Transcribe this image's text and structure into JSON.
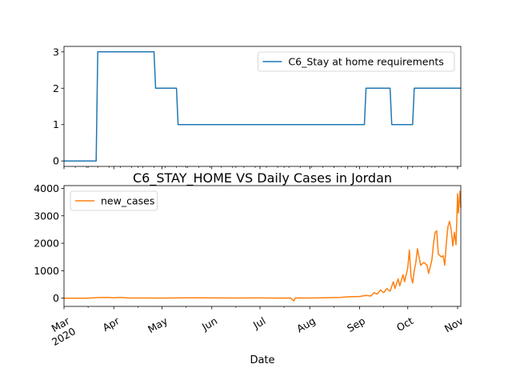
{
  "chart_data": [
    {
      "type": "line",
      "title": "",
      "xlabel": "",
      "ylabel": "",
      "ylim": [
        -0.15,
        3.15
      ],
      "yticks": [
        0,
        1,
        2,
        3
      ],
      "legend": "upper right",
      "series": [
        {
          "name": "C6_Stay at home requirements",
          "color": "#1f77b4",
          "points": [
            [
              "2020-03-01",
              0
            ],
            [
              "2020-03-21",
              0
            ],
            [
              "2020-03-22",
              3
            ],
            [
              "2020-04-26",
              3
            ],
            [
              "2020-04-27",
              2
            ],
            [
              "2020-05-10",
              2
            ],
            [
              "2020-05-11",
              1
            ],
            [
              "2020-09-04",
              1
            ],
            [
              "2020-09-05",
              2
            ],
            [
              "2020-09-20",
              2
            ],
            [
              "2020-09-21",
              1
            ],
            [
              "2020-10-04",
              1
            ],
            [
              "2020-10-05",
              2
            ],
            [
              "2020-11-03",
              2
            ]
          ]
        }
      ]
    },
    {
      "type": "line",
      "title": "C6_STAY_HOME VS Daily Cases in Jordan",
      "xlabel": "Date",
      "ylabel": "",
      "ylim": [
        -300,
        4100
      ],
      "yticks": [
        0,
        1000,
        2000,
        3000,
        4000
      ],
      "legend": "upper left",
      "series": [
        {
          "name": "new_cases",
          "color": "#ff7f0e",
          "points": [
            [
              "2020-03-01",
              0
            ],
            [
              "2020-03-15",
              0
            ],
            [
              "2020-03-22",
              20
            ],
            [
              "2020-03-28",
              30
            ],
            [
              "2020-04-01",
              15
            ],
            [
              "2020-04-05",
              25
            ],
            [
              "2020-04-10",
              5
            ],
            [
              "2020-04-20",
              5
            ],
            [
              "2020-05-01",
              3
            ],
            [
              "2020-05-10",
              10
            ],
            [
              "2020-05-20",
              15
            ],
            [
              "2020-06-01",
              8
            ],
            [
              "2020-06-15",
              5
            ],
            [
              "2020-07-01",
              10
            ],
            [
              "2020-07-10",
              3
            ],
            [
              "2020-07-20",
              5
            ],
            [
              "2020-07-22",
              -100
            ],
            [
              "2020-07-23",
              10
            ],
            [
              "2020-08-01",
              5
            ],
            [
              "2020-08-10",
              15
            ],
            [
              "2020-08-20",
              30
            ],
            [
              "2020-08-25",
              50
            ],
            [
              "2020-09-01",
              60
            ],
            [
              "2020-09-05",
              100
            ],
            [
              "2020-09-08",
              80
            ],
            [
              "2020-09-10",
              200
            ],
            [
              "2020-09-12",
              150
            ],
            [
              "2020-09-14",
              300
            ],
            [
              "2020-09-16",
              200
            ],
            [
              "2020-09-18",
              350
            ],
            [
              "2020-09-20",
              250
            ],
            [
              "2020-09-22",
              600
            ],
            [
              "2020-09-23",
              350
            ],
            [
              "2020-09-25",
              700
            ],
            [
              "2020-09-26",
              450
            ],
            [
              "2020-09-28",
              850
            ],
            [
              "2020-09-29",
              600
            ],
            [
              "2020-10-01",
              1100
            ],
            [
              "2020-10-02",
              1750
            ],
            [
              "2020-10-03",
              800
            ],
            [
              "2020-10-04",
              550
            ],
            [
              "2020-10-05",
              1000
            ],
            [
              "2020-10-06",
              1300
            ],
            [
              "2020-10-07",
              1800
            ],
            [
              "2020-10-08",
              1500
            ],
            [
              "2020-10-09",
              1200
            ],
            [
              "2020-10-11",
              1300
            ],
            [
              "2020-10-13",
              1200
            ],
            [
              "2020-10-14",
              900
            ],
            [
              "2020-10-16",
              1400
            ],
            [
              "2020-10-17",
              2000
            ],
            [
              "2020-10-18",
              2400
            ],
            [
              "2020-10-19",
              2450
            ],
            [
              "2020-10-20",
              1600
            ],
            [
              "2020-10-22",
              1500
            ],
            [
              "2020-10-23",
              1550
            ],
            [
              "2020-10-24",
              1200
            ],
            [
              "2020-10-25",
              2000
            ],
            [
              "2020-10-26",
              2600
            ],
            [
              "2020-10-27",
              2800
            ],
            [
              "2020-10-28",
              2500
            ],
            [
              "2020-10-29",
              1900
            ],
            [
              "2020-10-30",
              2400
            ],
            [
              "2020-10-31",
              1950
            ],
            [
              "2020-11-01",
              3800
            ],
            [
              "2020-11-01T12",
              3100
            ],
            [
              "2020-11-02",
              3500
            ],
            [
              "2020-11-02T12",
              3900
            ],
            [
              "2020-11-03",
              3300
            ]
          ]
        }
      ]
    }
  ],
  "x_axis": {
    "range": [
      "2020-03-01",
      "2020-11-03"
    ],
    "tick_labels": [
      {
        "date": "2020-03-01",
        "label": "Mar\n2020"
      },
      {
        "date": "2020-04-01",
        "label": "Apr"
      },
      {
        "date": "2020-05-01",
        "label": "May"
      },
      {
        "date": "2020-06-01",
        "label": "Jun"
      },
      {
        "date": "2020-07-01",
        "label": "Jul"
      },
      {
        "date": "2020-08-01",
        "label": "Aug"
      },
      {
        "date": "2020-09-01",
        "label": "Sep"
      },
      {
        "date": "2020-10-01",
        "label": "Oct"
      },
      {
        "date": "2020-11-01",
        "label": "Nov"
      }
    ]
  }
}
